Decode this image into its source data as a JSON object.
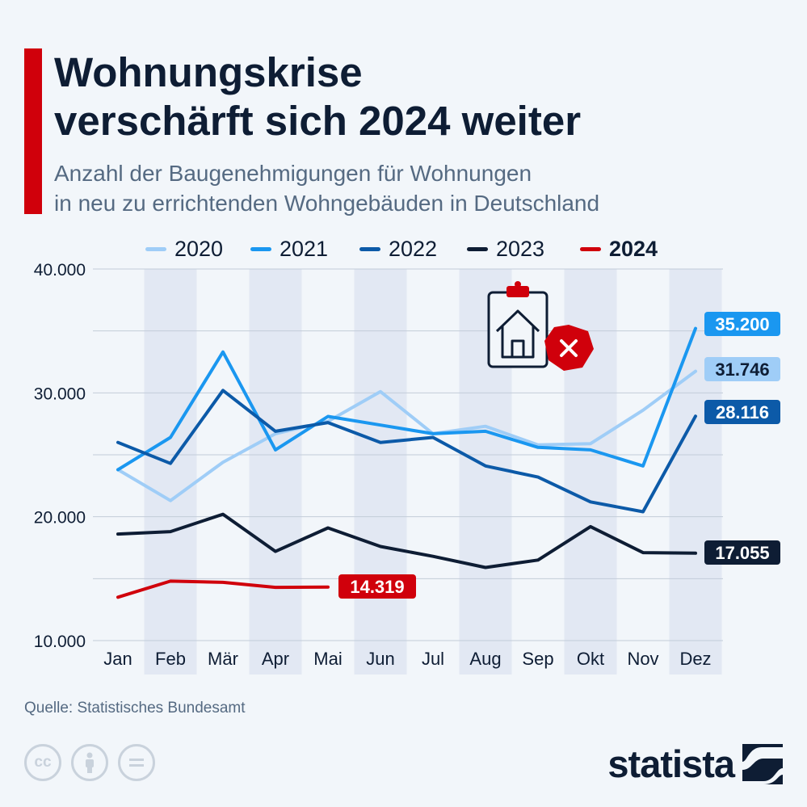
{
  "header": {
    "title_line1": "Wohnungskrise",
    "title_line2": "verschärft sich 2024 weiter",
    "subtitle_line1": "Anzahl der Baugenehmigungen für Wohnungen",
    "subtitle_line2": "in neu zu errichtenden Wohngebäuden in Deutschland"
  },
  "colors": {
    "accent": "#d0000b",
    "2020": "#9fcdf7",
    "2021": "#1a97f0",
    "2022": "#0c5aa8",
    "2023": "#0e1d34",
    "2024": "#d0000b"
  },
  "chart_data": {
    "type": "line",
    "title": "Wohnungskrise verschärft sich 2024 weiter",
    "subtitle": "Anzahl der Baugenehmigungen für Wohnungen in neu zu errichtenden Wohngebäuden in Deutschland",
    "xlabel": "",
    "ylabel": "",
    "categories": [
      "Jan",
      "Feb",
      "Mär",
      "Apr",
      "Mai",
      "Jun",
      "Jul",
      "Aug",
      "Sep",
      "Okt",
      "Nov",
      "Dez"
    ],
    "ylim": [
      10000,
      40000
    ],
    "yticks": [
      10000,
      20000,
      30000,
      40000
    ],
    "ytick_labels": [
      "10.000",
      "20.000",
      "30.000",
      "40.000"
    ],
    "grid": true,
    "legend_position": "top",
    "series": [
      {
        "name": "2020",
        "color": "#9fcdf7",
        "bold": false,
        "values": [
          23800,
          21300,
          24400,
          26700,
          27700,
          30100,
          26700,
          27300,
          25800,
          25900,
          28600,
          31746
        ],
        "end_label": "31.746"
      },
      {
        "name": "2021",
        "color": "#1a97f0",
        "bold": false,
        "values": [
          23800,
          26400,
          33300,
          25400,
          28100,
          27400,
          26700,
          26900,
          25600,
          25400,
          24100,
          35200
        ],
        "end_label": "35.200"
      },
      {
        "name": "2022",
        "color": "#0c5aa8",
        "bold": false,
        "values": [
          26000,
          24300,
          30200,
          26900,
          27600,
          26000,
          26400,
          24100,
          23200,
          21200,
          20400,
          28116
        ],
        "end_label": "28.116"
      },
      {
        "name": "2023",
        "color": "#0e1d34",
        "bold": false,
        "values": [
          18600,
          18800,
          20200,
          17200,
          19100,
          17600,
          16800,
          15900,
          16500,
          19200,
          17100,
          17055
        ],
        "end_label": "17.055"
      },
      {
        "name": "2024",
        "color": "#d0000b",
        "bold": true,
        "values": [
          13500,
          14800,
          14700,
          14300,
          14319,
          null,
          null,
          null,
          null,
          null,
          null,
          null
        ],
        "end_label": "14.319"
      }
    ]
  },
  "footer": {
    "source": "Quelle: Statistisches Bundesamt",
    "brand": "statista"
  }
}
